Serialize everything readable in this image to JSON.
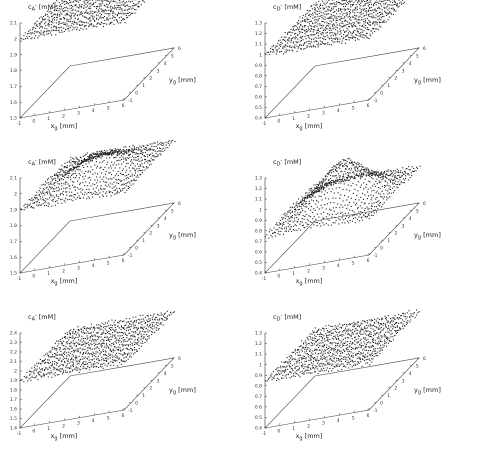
{
  "chart_data": [
    {
      "type": "scatter3d",
      "position": "top-left",
      "shape": "flat",
      "zlabel": {
        "symbol": "c",
        "sub": "A",
        "sup": "-",
        "unit": "[mM]"
      },
      "zticks": [
        "2.1",
        "2",
        "1.9",
        "1.8",
        "1.7",
        "1.6",
        "1.5"
      ],
      "zlim": [
        1.5,
        2.1
      ],
      "surface_value": 2.0,
      "xlabel": {
        "symbol": "x",
        "sub": "g",
        "unit": "[mm]"
      },
      "ylabel": {
        "symbol": "y",
        "sub": "g",
        "unit": "[mm]"
      },
      "xticks": [
        "-1",
        "0",
        "1",
        "2",
        "3",
        "4",
        "5",
        "6"
      ],
      "yticks": [
        "-1",
        "0",
        "1",
        "2",
        "3",
        "4",
        "5",
        "6"
      ]
    },
    {
      "type": "scatter3d",
      "position": "top-right",
      "shape": "flat",
      "zlabel": {
        "symbol": "c",
        "sub": "D",
        "sup": "-",
        "unit": "[mM]"
      },
      "zticks": [
        "1.3",
        "1.2",
        "1.1",
        "1",
        "0.9",
        "0.8",
        "0.7",
        "0.6",
        "0.5",
        "0.4"
      ],
      "zlim": [
        0.4,
        1.3
      ],
      "surface_value": 1.0,
      "xlabel": {
        "symbol": "x",
        "sub": "g",
        "unit": "[mm]"
      },
      "ylabel": {
        "symbol": "y",
        "sub": "g",
        "unit": "[mm]"
      },
      "xticks": [
        "-1",
        "0",
        "1",
        "2",
        "3",
        "4",
        "5",
        "6"
      ],
      "yticks": [
        "-1",
        "0",
        "1",
        "2",
        "3",
        "4",
        "5",
        "6"
      ]
    },
    {
      "type": "scatter3d",
      "position": "middle-left",
      "shape": "dome-low",
      "zlabel": {
        "symbol": "c",
        "sub": "A",
        "sup": "-",
        "unit": "[mM]"
      },
      "zticks": [
        "2.1",
        "2",
        "1.9",
        "1.8",
        "1.7",
        "1.6",
        "1.5"
      ],
      "zlim": [
        1.5,
        2.1
      ],
      "surface_value": 1.9,
      "peak_value": 2.03,
      "xlabel": {
        "symbol": "x",
        "sub": "g",
        "unit": "[mm]"
      },
      "ylabel": {
        "symbol": "y",
        "sub": "g",
        "unit": "[mm]"
      },
      "xticks": [
        "-1",
        "0",
        "1",
        "2",
        "3",
        "4",
        "5",
        "6"
      ],
      "yticks": [
        "-1",
        "0",
        "1",
        "2",
        "3",
        "4",
        "5",
        "6"
      ]
    },
    {
      "type": "scatter3d",
      "position": "middle-right",
      "shape": "dome-high",
      "zlabel": {
        "symbol": "c",
        "sub": "D",
        "sup": "-",
        "unit": "[mM]"
      },
      "zticks": [
        "1.3",
        "1.2",
        "1.1",
        "1",
        "0.9",
        "0.8",
        "0.7",
        "0.6",
        "0.5",
        "0.4"
      ],
      "zlim": [
        0.4,
        1.3
      ],
      "surface_value": 0.75,
      "peak_value": 1.13,
      "xlabel": {
        "symbol": "x",
        "sub": "g",
        "unit": "[mm]"
      },
      "ylabel": {
        "symbol": "y",
        "sub": "g",
        "unit": "[mm]"
      },
      "xticks": [
        "-1",
        "0",
        "1",
        "2",
        "3",
        "4",
        "5",
        "6"
      ],
      "yticks": [
        "-1",
        "0",
        "1",
        "2",
        "3",
        "4",
        "5",
        "6"
      ]
    },
    {
      "type": "scatter3d",
      "position": "bottom-left",
      "shape": "flat",
      "zlabel": {
        "symbol": "c",
        "sub": "A",
        "sup": "-",
        "unit": "[mM]"
      },
      "zticks": [
        "2.4",
        "2.3",
        "2.2",
        "2.1",
        "2",
        "1.9",
        "1.8",
        "1.7",
        "1.6",
        "1.5",
        "1.4"
      ],
      "zlim": [
        1.4,
        2.4
      ],
      "surface_value": 1.9,
      "xlabel": {
        "symbol": "x",
        "sub": "g",
        "unit": "[mm]"
      },
      "ylabel": {
        "symbol": "y",
        "sub": "g",
        "unit": "[mm]"
      },
      "xticks": [
        "-1",
        "0",
        "1",
        "2",
        "3",
        "4",
        "5",
        "6"
      ],
      "yticks": [
        "-1",
        "0",
        "1",
        "2",
        "3",
        "4",
        "5",
        "6"
      ]
    },
    {
      "type": "scatter3d",
      "position": "bottom-right",
      "shape": "flat",
      "zlabel": {
        "symbol": "c",
        "sub": "D",
        "sup": "-",
        "unit": "[mM]"
      },
      "zticks": [
        "1.3",
        "1.2",
        "1.1",
        "1",
        "0.9",
        "0.8",
        "0.7",
        "0.6",
        "0.5",
        "0.4"
      ],
      "zlim": [
        0.4,
        1.3
      ],
      "surface_value": 0.85,
      "xlabel": {
        "symbol": "x",
        "sub": "g",
        "unit": "[mm]"
      },
      "ylabel": {
        "symbol": "y",
        "sub": "g",
        "unit": "[mm]"
      },
      "xticks": [
        "-1",
        "0",
        "1",
        "2",
        "3",
        "4",
        "5",
        "6"
      ],
      "yticks": [
        "-1",
        "0",
        "1",
        "2",
        "3",
        "4",
        "5",
        "6"
      ]
    }
  ]
}
